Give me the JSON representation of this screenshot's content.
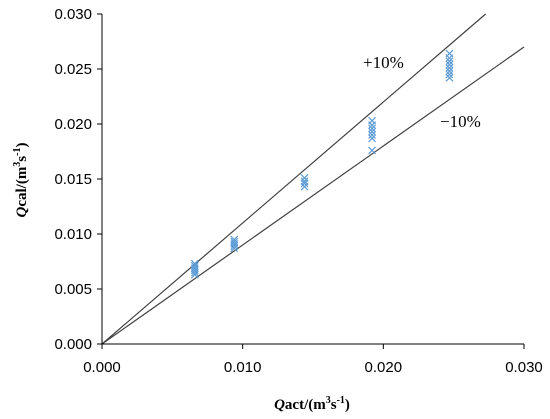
{
  "chart_data": {
    "type": "scatter",
    "xlabel": {
      "italic": "Q",
      "text": "act/(m",
      "sup1": "3",
      "mid": "s",
      "sup2": "-1",
      "end": ")"
    },
    "ylabel": {
      "italic": "Q",
      "text": "cal/(m",
      "sup1": "3",
      "mid": "s",
      "sup2": "-1",
      "end": ")"
    },
    "xlim": [
      0,
      0.03
    ],
    "ylim": [
      0,
      0.03
    ],
    "xticks": [
      "0.000",
      "0.010",
      "0.020",
      "0.030"
    ],
    "yticks": [
      "0.000",
      "0.005",
      "0.010",
      "0.015",
      "0.020",
      "0.025",
      "0.030"
    ],
    "grid": false,
    "series": [
      {
        "marker": "x",
        "color": "#5b9bd5",
        "points": [
          [
            0.0066,
            0.0063
          ],
          [
            0.0066,
            0.0065
          ],
          [
            0.0066,
            0.0067
          ],
          [
            0.0066,
            0.0069
          ],
          [
            0.0066,
            0.0071
          ],
          [
            0.0066,
            0.0073
          ],
          [
            0.0094,
            0.0087
          ],
          [
            0.0094,
            0.0089
          ],
          [
            0.0094,
            0.0091
          ],
          [
            0.0094,
            0.0093
          ],
          [
            0.0094,
            0.0095
          ],
          [
            0.0144,
            0.0143
          ],
          [
            0.0144,
            0.0146
          ],
          [
            0.0144,
            0.0148
          ],
          [
            0.0144,
            0.0151
          ],
          [
            0.0192,
            0.0176
          ],
          [
            0.0192,
            0.0187
          ],
          [
            0.0192,
            0.019
          ],
          [
            0.0192,
            0.0193
          ],
          [
            0.0192,
            0.0196
          ],
          [
            0.0192,
            0.0199
          ],
          [
            0.0192,
            0.0203
          ],
          [
            0.0247,
            0.0242
          ],
          [
            0.0247,
            0.0245
          ],
          [
            0.0247,
            0.0248
          ],
          [
            0.0247,
            0.0251
          ],
          [
            0.0247,
            0.0254
          ],
          [
            0.0247,
            0.0257
          ],
          [
            0.0247,
            0.026
          ],
          [
            0.0247,
            0.0264
          ]
        ]
      }
    ],
    "reference_lines": [
      {
        "label": "+10%",
        "slope": 1.1
      },
      {
        "label": "−10%",
        "slope": 0.9
      }
    ],
    "line_color": "#404040"
  }
}
